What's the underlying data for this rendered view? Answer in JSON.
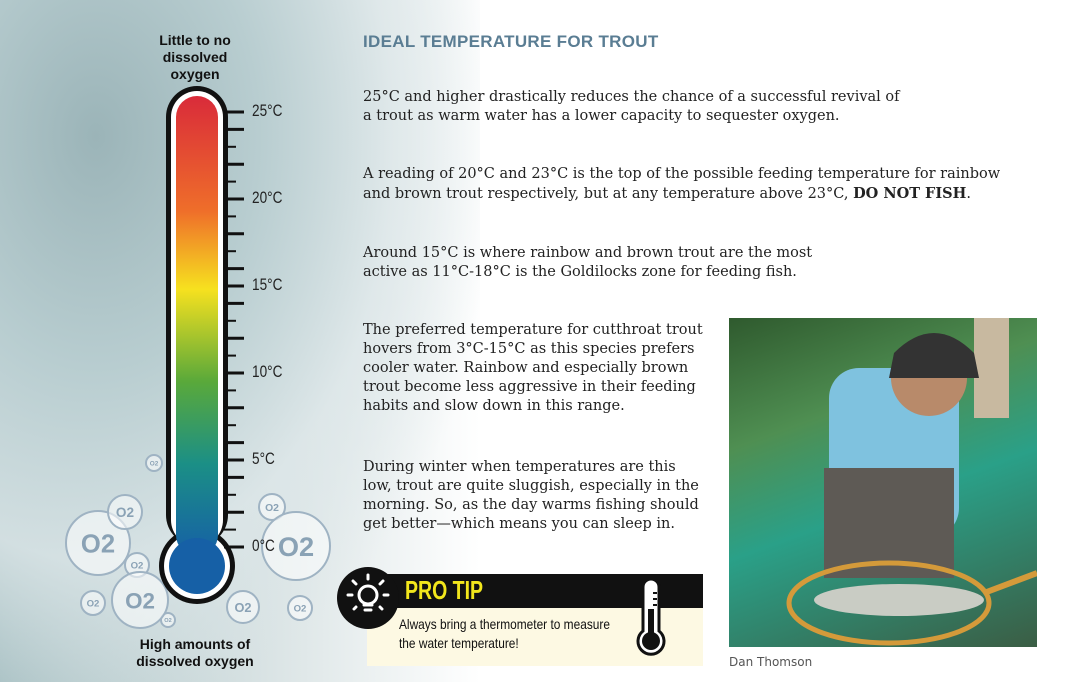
{
  "thermometer": {
    "top_label": "Little to no dissolved oxygen",
    "bottom_label": "High amounts of dissolved oxygen",
    "ticks": [
      "25°C",
      "20°C",
      "15°C",
      "10°C",
      "5°C",
      "0°C"
    ],
    "oxygen_bubble_label": "O2"
  },
  "title": "IDEAL TEMPERATURE FOR TROUT",
  "paragraphs": {
    "p1": "25°C and higher drastically reduces the chance of a successful revival of a trout as warm water has a lower capacity to sequester oxygen.",
    "p2a": "A reading of 20°C and 23°C is the top of the possible feeding temperature for rainbow and brown trout respectively, but at any temperature above 23°C, ",
    "p2b": "DO NOT FISH",
    "p2c": ".",
    "p3": "Around 15°C is where rainbow and brown trout are the most active as 11°C-18°C is the Goldilocks zone for feeding fish.",
    "p4": "The preferred temperature for cutthroat trout hovers from 3°C-15°C as this species prefers cooler water. Rainbow and especially brown trout become less aggressive in their feeding habits and slow down in this range.",
    "p5": "During winter when temperatures are this low, trout are quite sluggish, especially in the morning. So, as the day warms fishing should get better—which means you can sleep in."
  },
  "pro_tip": {
    "title": "PRO TIP",
    "text": "Always bring a thermometer to measure the water temperature!",
    "icons": [
      "lightbulb-icon",
      "thermometer-icon"
    ],
    "title_color": "#f2e61c"
  },
  "photo": {
    "caption": "Dan Thomson"
  }
}
